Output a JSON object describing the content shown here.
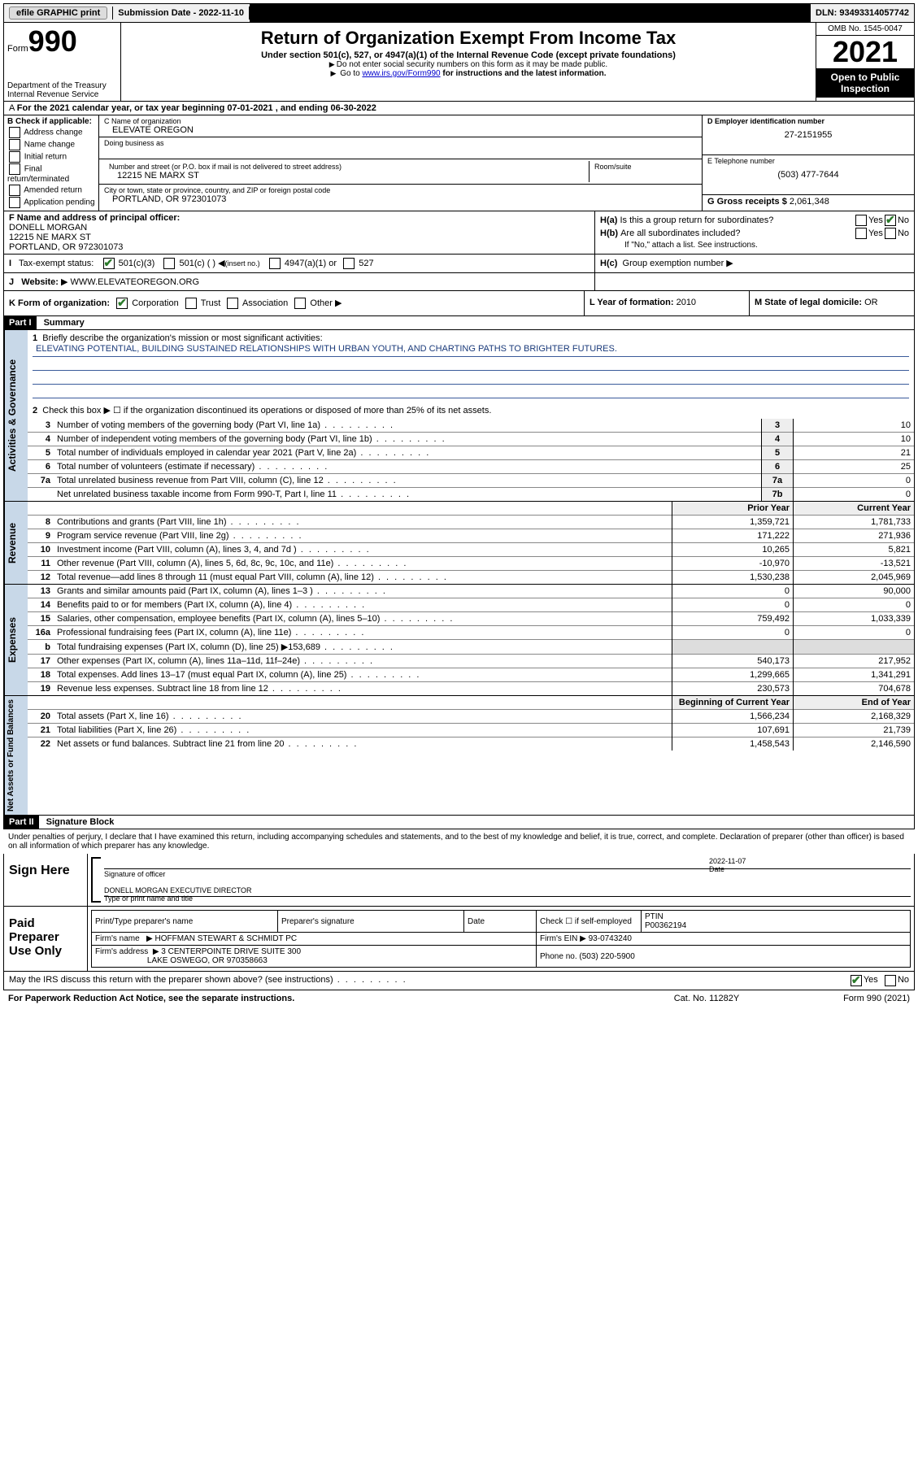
{
  "topbar": {
    "efile": "efile GRAPHIC print",
    "submission_label": "Submission Date - 2022-11-10",
    "dln": "DLN: 93493314057742"
  },
  "header": {
    "form_prefix": "Form",
    "form_number": "990",
    "dept": "Department of the Treasury",
    "irs": "Internal Revenue Service",
    "title": "Return of Organization Exempt From Income Tax",
    "subtitle": "Under section 501(c), 527, or 4947(a)(1) of the Internal Revenue Code (except private foundations)",
    "note1": "Do not enter social security numbers on this form as it may be made public.",
    "note2_prefix": "Go to ",
    "note2_link": "www.irs.gov/Form990",
    "note2_suffix": " for instructions and the latest information.",
    "omb": "OMB No. 1545-0047",
    "year": "2021",
    "inspection": "Open to Public Inspection"
  },
  "line_a": "For the 2021 calendar year, or tax year beginning 07-01-2021   , and ending 06-30-2022",
  "box_b": {
    "label": "B Check if applicable:",
    "opts": [
      "Address change",
      "Name change",
      "Initial return",
      "Final return/terminated",
      "Amended return",
      "Application pending"
    ]
  },
  "box_c": {
    "name_label": "C Name of organization",
    "name": "ELEVATE OREGON",
    "dba_label": "Doing business as",
    "addr_label": "Number and street (or P.O. box if mail is not delivered to street address)",
    "room_label": "Room/suite",
    "addr": "12215 NE MARX ST",
    "city_label": "City or town, state or province, country, and ZIP or foreign postal code",
    "city": "PORTLAND, OR  972301073"
  },
  "box_d": {
    "label": "D Employer identification number",
    "value": "27-2151955"
  },
  "box_e": {
    "label": "E Telephone number",
    "value": "(503) 477-7644"
  },
  "box_g": {
    "label": "G Gross receipts $",
    "value": "2,061,348"
  },
  "box_f": {
    "label": "F Name and address of principal officer:",
    "name": "DONELL MORGAN",
    "addr1": "12215 NE MARX ST",
    "addr2": "PORTLAND, OR  972301073"
  },
  "box_h": {
    "ha_label": "Is this a group return for subordinates?",
    "hb_label": "Are all subordinates included?",
    "hb_note": "If \"No,\" attach a list. See instructions.",
    "hc_label": "Group exemption number",
    "ha": "H(a)",
    "hb": "H(b)",
    "hc": "H(c)"
  },
  "box_i": {
    "label": "Tax-exempt status:",
    "opt1": "501(c)(3)",
    "opt2": "501(c) (   )",
    "opt2_suffix": "(insert no.)",
    "opt3": "4947(a)(1) or",
    "opt4": "527"
  },
  "box_j": {
    "label": "Website:",
    "value": "WWW.ELEVATEOREGON.ORG"
  },
  "box_k": {
    "label": "K Form of organization:",
    "opts": [
      "Corporation",
      "Trust",
      "Association",
      "Other"
    ]
  },
  "box_l": {
    "label": "L Year of formation:",
    "value": "2010"
  },
  "box_m": {
    "label": "M State of legal domicile:",
    "value": "OR"
  },
  "part1": {
    "hdr": "Part I",
    "title": "Summary",
    "line1_label": "Briefly describe the organization's mission or most significant activities:",
    "mission": "ELEVATING POTENTIAL, BUILDING SUSTAINED RELATIONSHIPS WITH URBAN YOUTH, AND CHARTING PATHS TO BRIGHTER FUTURES.",
    "line2": "Check this box ▶ ☐  if the organization discontinued its operations or disposed of more than 25% of its net assets.",
    "vtab1": "Activities & Governance",
    "vtab2": "Revenue",
    "vtab3": "Expenses",
    "vtab4": "Net Assets or Fund Balances",
    "rows_gov": [
      {
        "n": "3",
        "d": "Number of voting members of the governing body (Part VI, line 1a)",
        "box": "3",
        "v": "10"
      },
      {
        "n": "4",
        "d": "Number of independent voting members of the governing body (Part VI, line 1b)",
        "box": "4",
        "v": "10"
      },
      {
        "n": "5",
        "d": "Total number of individuals employed in calendar year 2021 (Part V, line 2a)",
        "box": "5",
        "v": "21"
      },
      {
        "n": "6",
        "d": "Total number of volunteers (estimate if necessary)",
        "box": "6",
        "v": "25"
      },
      {
        "n": "7a",
        "d": "Total unrelated business revenue from Part VIII, column (C), line 12",
        "box": "7a",
        "v": "0"
      },
      {
        "n": "",
        "d": "Net unrelated business taxable income from Form 990-T, Part I, line 11",
        "box": "7b",
        "v": "0"
      }
    ],
    "col_prior": "Prior Year",
    "col_current": "Current Year",
    "col_begin": "Beginning of Current Year",
    "col_end": "End of Year",
    "rows_rev": [
      {
        "n": "8",
        "d": "Contributions and grants (Part VIII, line 1h)",
        "p": "1,359,721",
        "c": "1,781,733"
      },
      {
        "n": "9",
        "d": "Program service revenue (Part VIII, line 2g)",
        "p": "171,222",
        "c": "271,936"
      },
      {
        "n": "10",
        "d": "Investment income (Part VIII, column (A), lines 3, 4, and 7d )",
        "p": "10,265",
        "c": "5,821"
      },
      {
        "n": "11",
        "d": "Other revenue (Part VIII, column (A), lines 5, 6d, 8c, 9c, 10c, and 11e)",
        "p": "-10,970",
        "c": "-13,521"
      },
      {
        "n": "12",
        "d": "Total revenue—add lines 8 through 11 (must equal Part VIII, column (A), line 12)",
        "p": "1,530,238",
        "c": "2,045,969"
      }
    ],
    "rows_exp": [
      {
        "n": "13",
        "d": "Grants and similar amounts paid (Part IX, column (A), lines 1–3 )",
        "p": "0",
        "c": "90,000"
      },
      {
        "n": "14",
        "d": "Benefits paid to or for members (Part IX, column (A), line 4)",
        "p": "0",
        "c": "0"
      },
      {
        "n": "15",
        "d": "Salaries, other compensation, employee benefits (Part IX, column (A), lines 5–10)",
        "p": "759,492",
        "c": "1,033,339"
      },
      {
        "n": "16a",
        "d": "Professional fundraising fees (Part IX, column (A), line 11e)",
        "p": "0",
        "c": "0"
      },
      {
        "n": "b",
        "d": "Total fundraising expenses (Part IX, column (D), line 25) ▶153,689",
        "p": "",
        "c": "",
        "shade": true
      },
      {
        "n": "17",
        "d": "Other expenses (Part IX, column (A), lines 11a–11d, 11f–24e)",
        "p": "540,173",
        "c": "217,952"
      },
      {
        "n": "18",
        "d": "Total expenses. Add lines 13–17 (must equal Part IX, column (A), line 25)",
        "p": "1,299,665",
        "c": "1,341,291"
      },
      {
        "n": "19",
        "d": "Revenue less expenses. Subtract line 18 from line 12",
        "p": "230,573",
        "c": "704,678"
      }
    ],
    "rows_net": [
      {
        "n": "20",
        "d": "Total assets (Part X, line 16)",
        "p": "1,566,234",
        "c": "2,168,329"
      },
      {
        "n": "21",
        "d": "Total liabilities (Part X, line 26)",
        "p": "107,691",
        "c": "21,739"
      },
      {
        "n": "22",
        "d": "Net assets or fund balances. Subtract line 21 from line 20",
        "p": "1,458,543",
        "c": "2,146,590"
      }
    ]
  },
  "part2": {
    "hdr": "Part II",
    "title": "Signature Block",
    "penalty": "Under penalties of perjury, I declare that I have examined this return, including accompanying schedules and statements, and to the best of my knowledge and belief, it is true, correct, and complete. Declaration of preparer (other than officer) is based on all information of which preparer has any knowledge.",
    "sign_here": "Sign Here",
    "sig_officer": "Signature of officer",
    "sig_date_label": "Date",
    "sig_date": "2022-11-07",
    "sig_name_label": "Type or print name and title",
    "sig_name": "DONELL MORGAN  EXECUTIVE DIRECTOR",
    "paid": "Paid Preparer Use Only",
    "prep_name_label": "Print/Type preparer's name",
    "prep_sig_label": "Preparer's signature",
    "prep_date_label": "Date",
    "prep_check_label": "Check ☐ if self-employed",
    "ptin_label": "PTIN",
    "ptin": "P00362194",
    "firm_name_label": "Firm's name",
    "firm_name": "HOFFMAN STEWART & SCHMIDT PC",
    "firm_ein_label": "Firm's EIN",
    "firm_ein": "93-0743240",
    "firm_addr_label": "Firm's address",
    "firm_addr1": "3 CENTERPOINTE DRIVE SUITE 300",
    "firm_addr2": "LAKE OSWEGO, OR  970358663",
    "phone_label": "Phone no.",
    "phone": "(503) 220-5900",
    "discuss": "May the IRS discuss this return with the preparer shown above? (see instructions)"
  },
  "footer": {
    "left": "For Paperwork Reduction Act Notice, see the separate instructions.",
    "mid": "Cat. No. 11282Y",
    "right": "Form 990 (2021)"
  },
  "labels": {
    "yes": "Yes",
    "no": "No",
    "i": "I",
    "j": "J"
  }
}
